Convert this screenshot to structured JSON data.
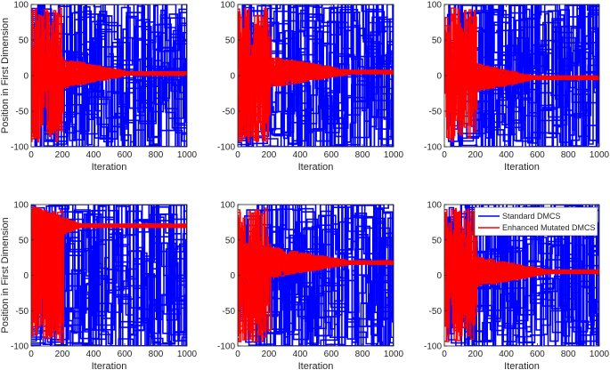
{
  "figure": {
    "legend_entries": [
      "Standard DMCS",
      "Enhanced Mutated DMCS"
    ]
  },
  "colors": {
    "standard": "#0000ff",
    "enhanced": "#ff0000",
    "axis": "#262626"
  },
  "chart_data": [
    {
      "type": "line",
      "panel": 1,
      "xlabel": "Iteration",
      "ylabel": "Position in First Dimension",
      "xlim": [
        0,
        1000
      ],
      "ylim": [
        -100,
        100
      ],
      "xticks": [
        "0",
        "200",
        "400",
        "600",
        "800",
        "1000"
      ],
      "yticks": [
        "-100",
        "-50",
        "0",
        "50",
        "100"
      ],
      "legend": false,
      "series": [
        {
          "name": "Standard DMCS",
          "trajectories": 25,
          "range": [
            -100,
            100
          ],
          "converges": false
        },
        {
          "name": "Enhanced Mutated DMCS",
          "trajectories": 25,
          "converge_to": 3,
          "converge_iteration": 600,
          "early_range": [
            -95,
            95
          ]
        }
      ]
    },
    {
      "type": "line",
      "panel": 2,
      "xlabel": "Iteration",
      "ylabel": "",
      "xlim": [
        0,
        1000
      ],
      "ylim": [
        -100,
        100
      ],
      "xticks": [
        "0",
        "200",
        "400",
        "600",
        "800",
        "1000"
      ],
      "yticks": [
        "-100",
        "-50",
        "0",
        "50",
        "100"
      ],
      "legend": false,
      "series": [
        {
          "name": "Standard DMCS",
          "trajectories": 25,
          "range": [
            -100,
            100
          ],
          "converges": false
        },
        {
          "name": "Enhanced Mutated DMCS",
          "trajectories": 25,
          "converge_to": 5,
          "converge_iteration": 700,
          "early_range": [
            -95,
            95
          ]
        }
      ]
    },
    {
      "type": "line",
      "panel": 3,
      "xlabel": "Iteration",
      "ylabel": "",
      "xlim": [
        0,
        1000
      ],
      "ylim": [
        -100,
        100
      ],
      "xticks": [
        "0",
        "200",
        "400",
        "600",
        "800",
        "1000"
      ],
      "yticks": [
        "-100",
        "-50",
        "0",
        "50",
        "100"
      ],
      "legend": false,
      "series": [
        {
          "name": "Standard DMCS",
          "trajectories": 25,
          "range": [
            -100,
            100
          ],
          "converges": false
        },
        {
          "name": "Enhanced Mutated DMCS",
          "trajectories": 25,
          "converge_to": -3,
          "converge_iteration": 550,
          "early_range": [
            -95,
            95
          ]
        }
      ]
    },
    {
      "type": "line",
      "panel": 4,
      "xlabel": "Iteration",
      "ylabel": "Position in First Dimension",
      "xlim": [
        0,
        1000
      ],
      "ylim": [
        -100,
        100
      ],
      "xticks": [
        "0",
        "200",
        "400",
        "600",
        "800",
        "1000"
      ],
      "yticks": [
        "-100",
        "-50",
        "0",
        "50",
        "100"
      ],
      "legend": false,
      "series": [
        {
          "name": "Standard DMCS",
          "trajectories": 25,
          "range": [
            -100,
            100
          ],
          "converges": false
        },
        {
          "name": "Enhanced Mutated DMCS",
          "trajectories": 25,
          "converge_to": 70,
          "converge_iteration": 300,
          "early_range": [
            -95,
            95
          ]
        }
      ]
    },
    {
      "type": "line",
      "panel": 5,
      "xlabel": "Iteration",
      "ylabel": "",
      "xlim": [
        0,
        1000
      ],
      "ylim": [
        -100,
        100
      ],
      "xticks": [
        "0",
        "200",
        "400",
        "600",
        "800",
        "1000"
      ],
      "yticks": [
        "-100",
        "-50",
        "0",
        "50",
        "100"
      ],
      "legend": false,
      "series": [
        {
          "name": "Standard DMCS",
          "trajectories": 25,
          "range": [
            -100,
            100
          ],
          "converges": false
        },
        {
          "name": "Enhanced Mutated DMCS",
          "trajectories": 25,
          "converge_to": 18,
          "converge_iteration": 700,
          "early_range": [
            -95,
            95
          ]
        }
      ]
    },
    {
      "type": "line",
      "panel": 6,
      "xlabel": "Iteration",
      "ylabel": "",
      "xlim": [
        0,
        1000
      ],
      "ylim": [
        -100,
        100
      ],
      "xticks": [
        "0",
        "200",
        "400",
        "600",
        "800",
        "1000"
      ],
      "yticks": [
        "-100",
        "-50",
        "0",
        "50",
        "100"
      ],
      "legend": true,
      "legend_position": "top-right",
      "series": [
        {
          "name": "Standard DMCS",
          "trajectories": 25,
          "range": [
            -100,
            100
          ],
          "converges": false
        },
        {
          "name": "Enhanced Mutated DMCS",
          "trajectories": 25,
          "converge_to": 5,
          "converge_iteration": 650,
          "early_range": [
            -95,
            95
          ]
        }
      ]
    }
  ]
}
